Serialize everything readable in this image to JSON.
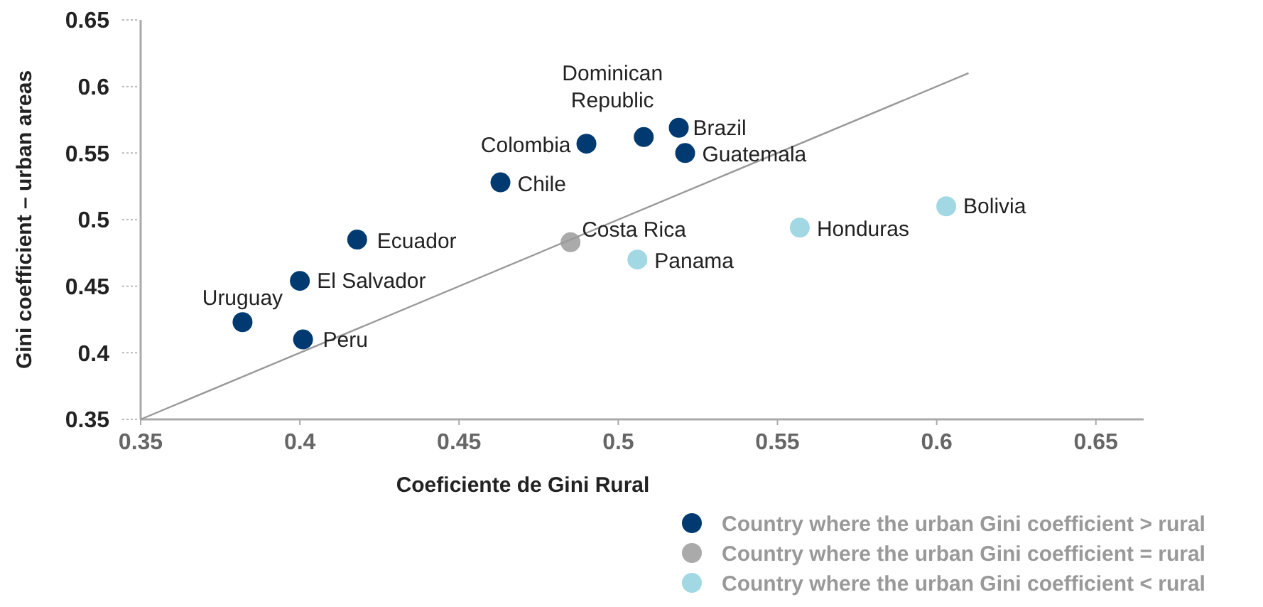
{
  "chart_data": {
    "type": "scatter",
    "xlabel": "Coeficiente de Gini Rural",
    "ylabel": "Gini coefficient – urban areas",
    "xlim": [
      0.35,
      0.665
    ],
    "ylim": [
      0.35,
      0.65
    ],
    "xticks": [
      0.35,
      0.4,
      0.45,
      0.5,
      0.55,
      0.6,
      0.65
    ],
    "yticks": [
      0.35,
      0.4,
      0.45,
      0.5,
      0.55,
      0.6,
      0.65
    ],
    "grid": false,
    "legend": "bottom right",
    "marker": "circle",
    "series": [
      {
        "name": "Country where the urban Gini coefficient > rural",
        "color": "#003a70",
        "x": [
          0.382,
          0.401,
          0.4,
          0.418,
          0.463,
          0.49,
          0.508,
          0.519,
          0.521
        ],
        "values": [
          0.423,
          0.41,
          0.454,
          0.485,
          0.528,
          0.557,
          0.562,
          0.569,
          0.55
        ]
      },
      {
        "name": "Country where the urban Gini coefficient = rural",
        "color": "#aaaaaa",
        "x": [
          0.485
        ],
        "values": [
          0.483
        ]
      },
      {
        "name": "Country where the urban Gini coefficient < rural",
        "color": "#a1d8e4",
        "x": [
          0.506,
          0.557,
          0.603
        ],
        "values": [
          0.47,
          0.494,
          0.51
        ]
      },
      {
        "type": "line",
        "marker": "none",
        "color": "#999999",
        "x": [
          0.35,
          0.61
        ],
        "values": [
          0.35,
          0.61
        ]
      }
    ],
    "annotations": [
      {
        "text": "Uruguay",
        "x": 0.382,
        "y": 0.423
      },
      {
        "text": "Peru",
        "x": 0.401,
        "y": 0.41
      },
      {
        "text": "El Salvador",
        "x": 0.4,
        "y": 0.454
      },
      {
        "text": "Ecuador",
        "x": 0.418,
        "y": 0.485
      },
      {
        "text": "Chile",
        "x": 0.463,
        "y": 0.528
      },
      {
        "text": "Colombia",
        "x": 0.49,
        "y": 0.557
      },
      {
        "text": "Dominican Republic",
        "x": 0.508,
        "y": 0.562
      },
      {
        "text": "Brazil",
        "x": 0.519,
        "y": 0.569
      },
      {
        "text": "Guatemala",
        "x": 0.521,
        "y": 0.55
      },
      {
        "text": "Costa Rica",
        "x": 0.485,
        "y": 0.483
      },
      {
        "text": "Panama",
        "x": 0.506,
        "y": 0.47
      },
      {
        "text": "Honduras",
        "x": 0.557,
        "y": 0.494
      },
      {
        "text": "Bolivia",
        "x": 0.603,
        "y": 0.51
      }
    ]
  }
}
